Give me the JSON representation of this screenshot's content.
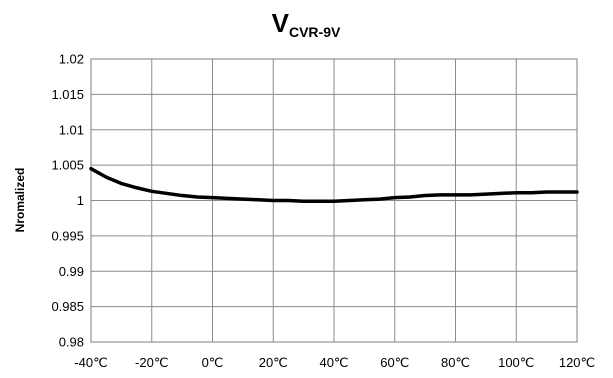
{
  "chart_data": {
    "type": "line",
    "title": "V",
    "title_subscript": "CVR-9V",
    "xlabel": "",
    "ylabel": "Nromalized",
    "categories": [
      "-40℃",
      "-20℃",
      "0℃",
      "20℃",
      "40℃",
      "60℃",
      "80℃",
      "100℃",
      "120℃"
    ],
    "x_ticks": [
      -40,
      -20,
      0,
      20,
      40,
      60,
      80,
      100,
      120
    ],
    "xlim": [
      -40,
      120
    ],
    "y_ticks": [
      0.98,
      0.985,
      0.99,
      0.995,
      1,
      1.005,
      1.01,
      1.015,
      1.02
    ],
    "y_tick_labels": [
      "0.98",
      "0.985",
      "0.99",
      "0.995",
      "1",
      "1.005",
      "1.01",
      "1.015",
      "1.02"
    ],
    "ylim": [
      0.98,
      1.02
    ],
    "grid": true,
    "series": [
      {
        "color": "#000000",
        "x": [
          -40,
          -35,
          -30,
          -25,
          -20,
          -15,
          -10,
          -5,
          0,
          5,
          10,
          15,
          20,
          25,
          30,
          35,
          40,
          45,
          50,
          55,
          60,
          65,
          70,
          75,
          80,
          85,
          90,
          95,
          100,
          105,
          110,
          115,
          120
        ],
        "values": [
          1.0045,
          1.0033,
          1.0024,
          1.0018,
          1.0013,
          1.001,
          1.0007,
          1.0005,
          1.0004,
          1.0003,
          1.0002,
          1.0001,
          1.0,
          1.0,
          0.9999,
          0.9999,
          0.9999,
          1.0,
          1.0001,
          1.0002,
          1.0004,
          1.0005,
          1.0007,
          1.0008,
          1.0008,
          1.0008,
          1.0009,
          1.001,
          1.0011,
          1.0011,
          1.0012,
          1.0012,
          1.0012
        ]
      }
    ]
  }
}
